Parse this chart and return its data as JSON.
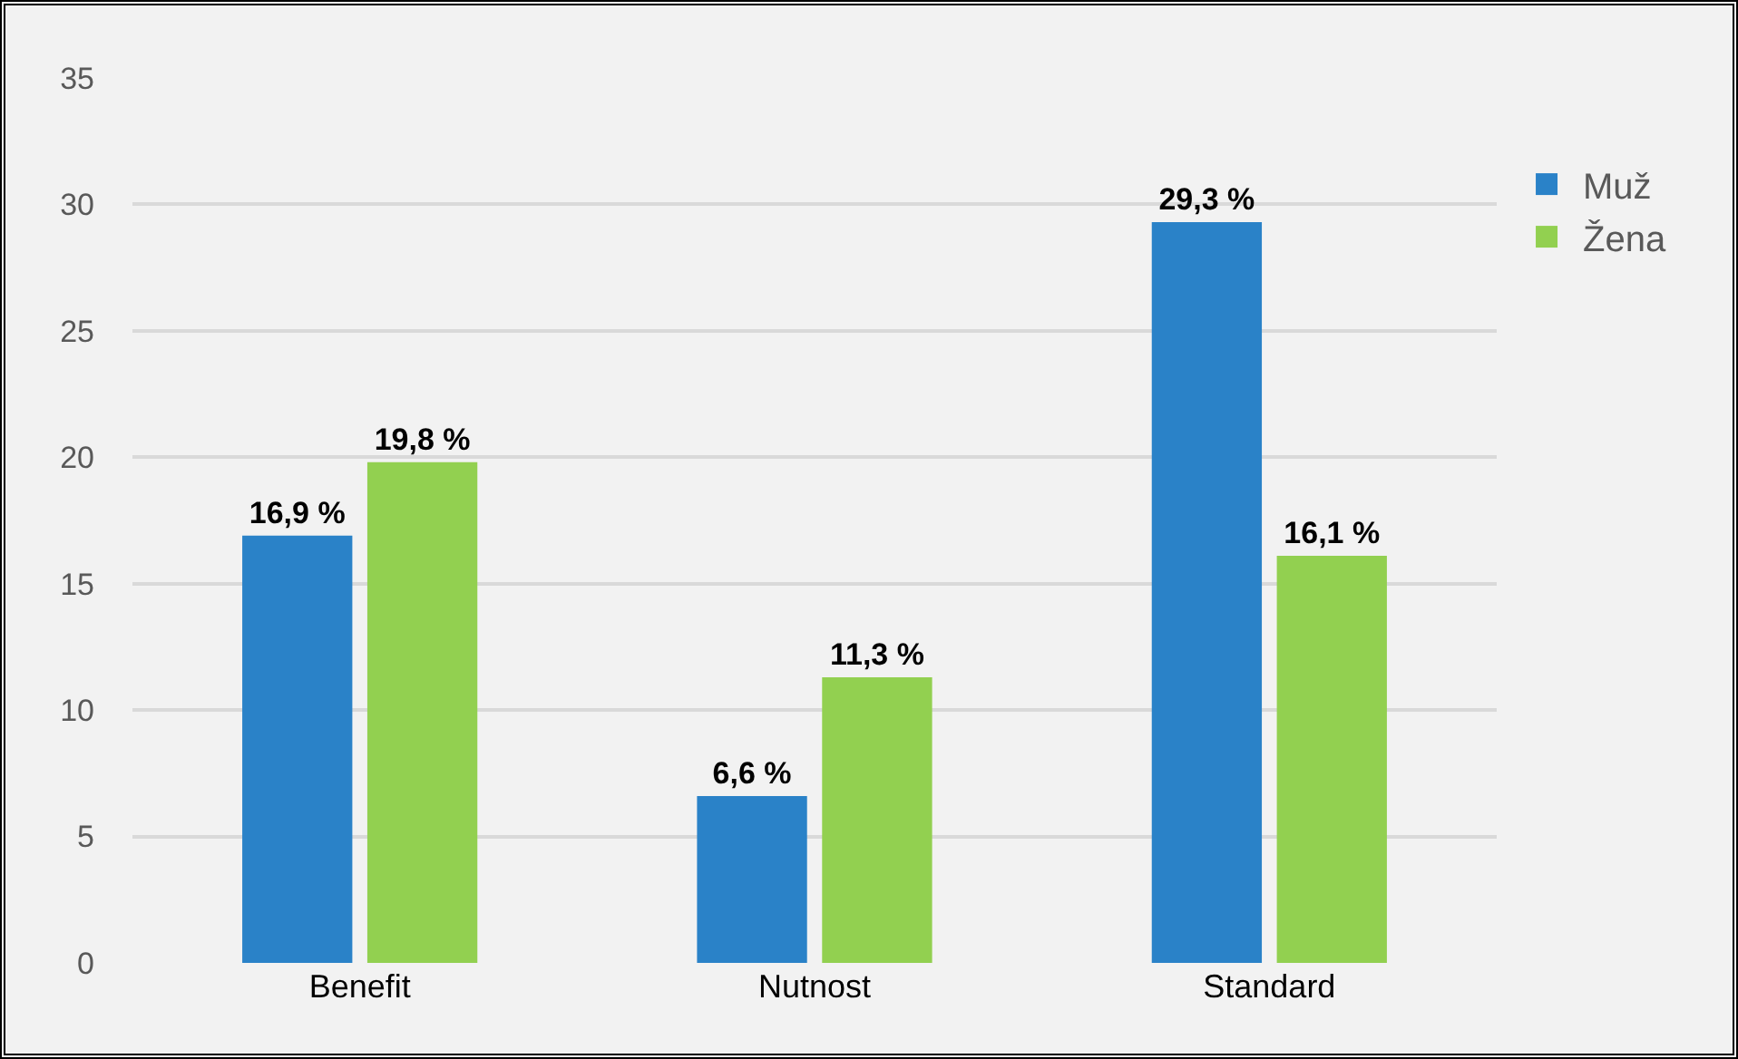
{
  "chart_data": {
    "type": "bar",
    "categories": [
      "Benefit",
      "Nutnost",
      "Standard"
    ],
    "series": [
      {
        "name": "Muž",
        "color": "#2a82c8",
        "values": [
          16.9,
          6.6,
          29.3
        ],
        "value_labels": [
          "16,9 %",
          "6,6 %",
          "29,3 %"
        ]
      },
      {
        "name": "Žena",
        "color": "#92d050",
        "values": [
          19.8,
          11.3,
          16.1
        ],
        "value_labels": [
          "19,8 %",
          "11,3 %",
          "16,1 %"
        ]
      }
    ],
    "ylim": [
      0,
      35
    ],
    "yticks": [
      0,
      5,
      10,
      15,
      20,
      25,
      30,
      35
    ],
    "grid": "y",
    "legend": "top right"
  }
}
